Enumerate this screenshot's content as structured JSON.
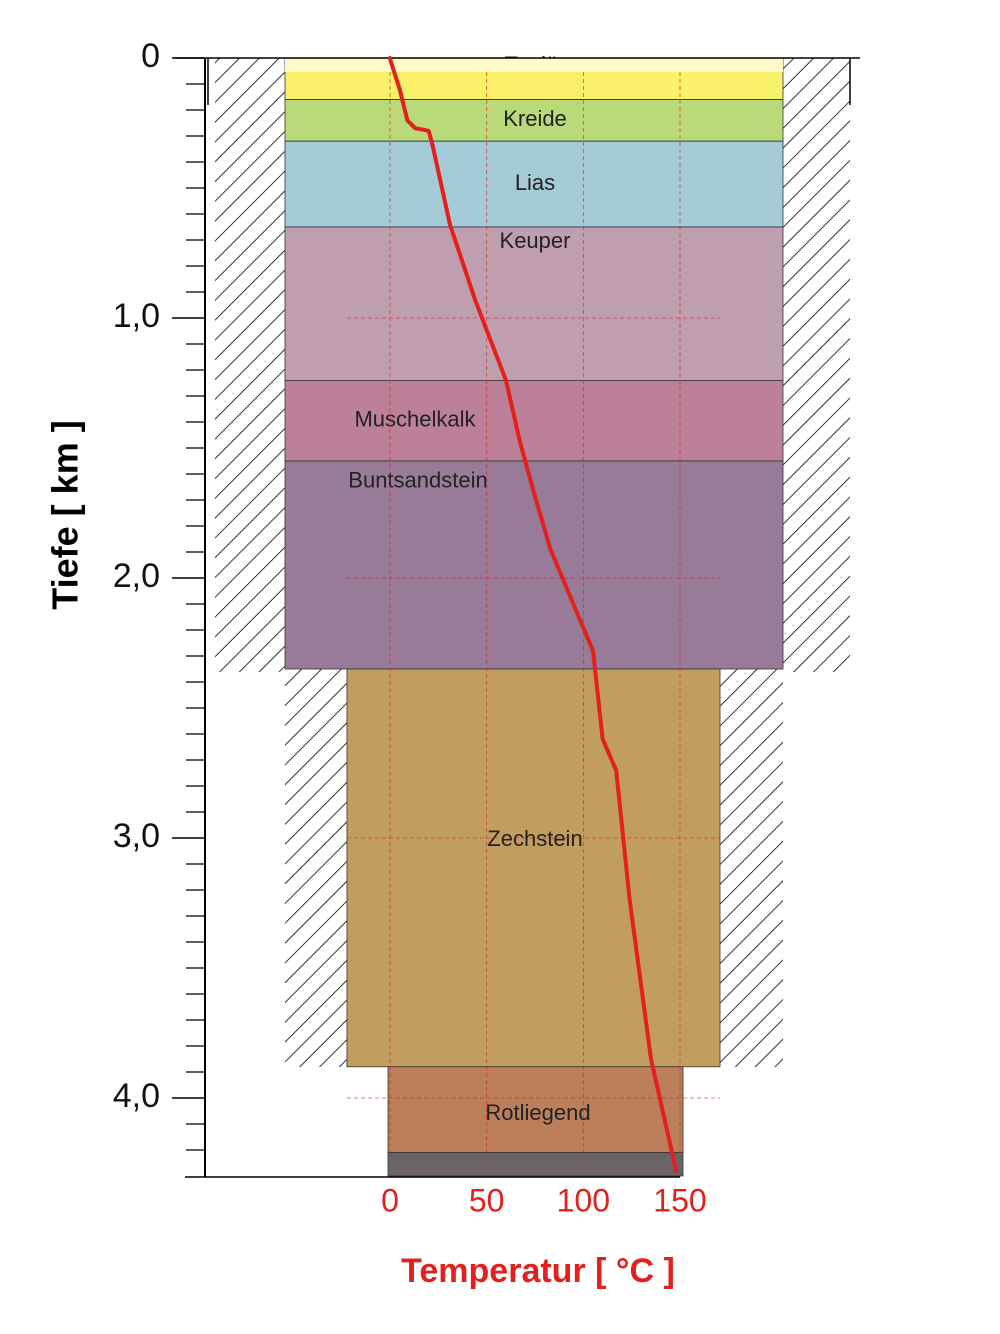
{
  "chart_data": {
    "type": "line",
    "xlabel": "Temperatur [ °C ]",
    "ylabel": "Tiefe [ km ]",
    "xlim": [
      0,
      150
    ],
    "xticks": [
      0,
      50,
      100,
      150
    ],
    "ylim": [
      0,
      4.3
    ],
    "yinverted": true,
    "yticks": [
      0,
      {
        "value": 1,
        "label": "1,0"
      },
      {
        "value": 2,
        "label": "2,0"
      },
      {
        "value": 3,
        "label": "3,0"
      },
      {
        "value": 4,
        "label": "4,0"
      }
    ],
    "yminorticks": [
      0.1,
      0.2,
      0.3,
      0.4,
      0.5,
      0.6,
      0.7,
      0.8,
      0.9,
      1.1,
      1.2,
      1.3,
      1.4,
      1.5,
      1.6,
      1.7,
      1.8,
      1.9,
      2.1,
      2.2,
      2.3,
      2.4,
      2.5,
      2.6,
      2.7,
      2.8,
      2.9,
      3.1,
      3.2,
      3.3,
      3.4,
      3.5,
      3.6,
      3.7,
      3.8,
      3.9,
      4.1,
      4.2
    ],
    "grid": true,
    "layers": [
      {
        "name": "Tertiär",
        "top": 0,
        "bottom": 0.16,
        "color": "#f9f16a"
      },
      {
        "name": "Kreide",
        "top": 0.16,
        "bottom": 0.32,
        "color": "#bada7a"
      },
      {
        "name": "Lias",
        "top": 0.32,
        "bottom": 0.65,
        "color": "#a5cbd9"
      },
      {
        "name": "Keuper",
        "top": 0.65,
        "bottom": 1.24,
        "color": "#bf9faf"
      },
      {
        "name": "Muschelkalk",
        "top": 1.24,
        "bottom": 1.55,
        "color": "#bc8198"
      },
      {
        "name": "Buntsandstein",
        "top": 1.55,
        "bottom": 2.35,
        "color": "#987b99"
      },
      {
        "name": "Zechstein",
        "top": 2.35,
        "bottom": 3.88,
        "color": "#c19e60"
      },
      {
        "name": "Rotliegend",
        "top": 3.88,
        "bottom": 4.21,
        "color": "#bb7f5c"
      },
      {
        "name": null,
        "top": 4.21,
        "bottom": 4.3,
        "color": "#6b6366"
      }
    ],
    "color": "#e3201b",
    "x": [
      0,
      0.5,
      5,
      9,
      13,
      20,
      22,
      31,
      44,
      60,
      67,
      74,
      83,
      105,
      110,
      117,
      124,
      135,
      148
    ],
    "values": [
      0,
      0.015,
      0.12,
      0.24,
      0.27,
      0.28,
      0.335,
      0.64,
      0.93,
      1.24,
      1.47,
      1.66,
      1.89,
      2.28,
      2.62,
      2.74,
      3.24,
      3.85,
      4.28
    ]
  }
}
